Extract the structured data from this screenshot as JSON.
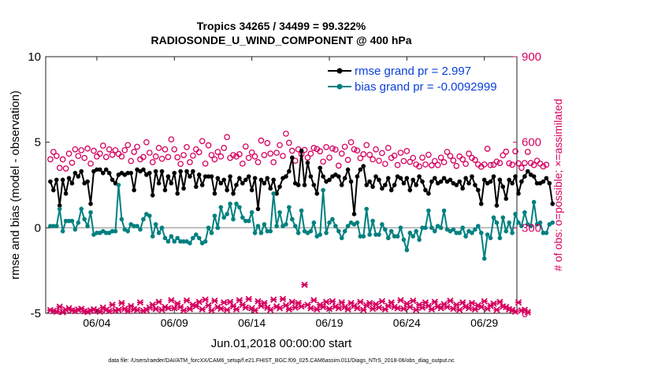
{
  "chart_data": {
    "type": "line",
    "title_line1": "Tropics 34265 / 34499 = 99.322%",
    "title_line2": "RADIOSONDE_U_WIND_COMPONENT @ 400 hPa",
    "xlabel": "Jun.01,2018 00:00:00 start",
    "ylabel_left": "rmse and bias (model - observation)",
    "ylabel_right": "# of obs: o=possible; ×=assimilated",
    "ylim_left": [
      -5,
      10
    ],
    "ylim_right": [
      0,
      900
    ],
    "xlim": [
      0.7,
      31.1
    ],
    "x_tick_values": [
      4,
      9,
      14,
      19,
      24,
      29
    ],
    "x_tick_labels": [
      "06/04",
      "06/09",
      "06/14",
      "06/19",
      "06/24",
      "06/29"
    ],
    "y_left_ticks": [
      "10",
      "5",
      "0",
      "-5"
    ],
    "y_right_ticks": [
      "900",
      "600",
      "300",
      "0"
    ],
    "footer": "data file: /Users/raeder/DAI/ATM_forcXX/CAM6_setup/f.e21.FHIST_BGC.f09_025.CAM6assim.011/Diags_NTrS_2018-06/obs_diag_output.nc",
    "legend": [
      {
        "name": "rmse grand pr = 2.997",
        "color": "#000000"
      },
      {
        "name": "bias grand pr = -0.0092999",
        "color": "#008080"
      }
    ],
    "colors": {
      "rmse": "#000000",
      "bias": "#008080",
      "obs": "#d6005f",
      "label_blue": "#0a3fd9",
      "zero_line": "#b0b0b0"
    },
    "series": [
      {
        "name": "rmse",
        "values": [
          2.7,
          2.2,
          2.8,
          1.3,
          2.8,
          2.0,
          2.9,
          2.6,
          3.2,
          3.0,
          3.3,
          2.6,
          2.7,
          1.4,
          3.3,
          3.4,
          3.4,
          3.2,
          3.4,
          3.2,
          2.8,
          2.6,
          3.1,
          3.2,
          3.1,
          3.2,
          3.2,
          2.2,
          3.4,
          3.3,
          3.4,
          3.1,
          3.2,
          1.9,
          3.3,
          2.6,
          3.3,
          2.2,
          3.0,
          2.6,
          3.2,
          2.0,
          3.3,
          2.3,
          3.3,
          3.0,
          3.3,
          2.4,
          3.1,
          2.5,
          3.0,
          3.0,
          3.0,
          2.0,
          2.9,
          2.6,
          2.8,
          2.2,
          3.0,
          2.0,
          2.5,
          2.9,
          2.6,
          2.8,
          3.0,
          2.2,
          2.9,
          1.1,
          2.8,
          2.6,
          2.9,
          2.3,
          2.8,
          2.0,
          2.4,
          2.9,
          3.0,
          3.3,
          4.1,
          2.6,
          2.5,
          4.5,
          2.5,
          3.8,
          3.0,
          2.5,
          2.0,
          3.5,
          3.0,
          2.7,
          2.8,
          3.0,
          3.1,
          3.0,
          2.5,
          2.9,
          3.4,
          2.7,
          0.8,
          3.0,
          3.4,
          3.6,
          2.5,
          2.7,
          2.4,
          3.0,
          2.8,
          2.3,
          2.5,
          2.9,
          2.2,
          2.5,
          3.0,
          2.9,
          2.6,
          2.9,
          2.2,
          2.8,
          2.5,
          3.0,
          2.7,
          2.2,
          2.0,
          2.7,
          2.9,
          2.6,
          2.7,
          2.9,
          2.7,
          2.8,
          2.6,
          2.5,
          2.7,
          2.3,
          2.9,
          2.6,
          3.0,
          2.5,
          2.2,
          1.4,
          2.8,
          2.6,
          2.7,
          3.0,
          1.3,
          2.8,
          2.4,
          1.7,
          2.8,
          2.6,
          3.0,
          2.0,
          2.7,
          3.0,
          3.3,
          3.1,
          3.0,
          2.6,
          2.6,
          2.7,
          2.9,
          2.6,
          1.4
        ]
      },
      {
        "name": "bias",
        "values": [
          0.1,
          0.1,
          0.1,
          1.1,
          -0.2,
          0.4,
          0.4,
          0.4,
          -0.1,
          0.3,
          1.1,
          0.5,
          0.1,
          0.9,
          -0.4,
          -0.3,
          -0.3,
          -0.2,
          -0.3,
          -0.3,
          -0.2,
          -0.2,
          2.5,
          0.5,
          -0.1,
          -0.2,
          0.2,
          0.1,
          0.1,
          -0.1,
          0.5,
          0.8,
          0.7,
          -0.5,
          0.2,
          -0.3,
          0.0,
          -0.6,
          -0.8,
          -0.5,
          -0.8,
          -0.6,
          -0.8,
          -0.8,
          -0.8,
          -0.9,
          -0.6,
          -0.4,
          -0.6,
          -0.9,
          -0.8,
          0.0,
          -0.3,
          0.7,
          0.0,
          1.2,
          0.6,
          0.8,
          1.4,
          0.5,
          1.4,
          1.2,
          0.6,
          0.4,
          0.4,
          0.9,
          -0.3,
          0.1,
          -0.3,
          0.2,
          -0.2,
          -0.2,
          2.0,
          0.1,
          0.9,
          0.1,
          0.2,
          1.2,
          0.5,
          0.1,
          -0.3,
          1.0,
          -0.2,
          -0.3,
          -0.2,
          0.3,
          -0.5,
          -0.4,
          2.2,
          -0.3,
          0.3,
          0.5,
          0.1,
          -0.2,
          -0.6,
          -0.2,
          0.1,
          0.3,
          0.2,
          0.3,
          -0.5,
          -0.5,
          1.1,
          -0.4,
          0.4,
          -0.4,
          -0.4,
          0.2,
          -0.1,
          -0.6,
          -0.2,
          -0.5,
          -0.5,
          0.0,
          -0.7,
          -1.3,
          -0.3,
          -0.5,
          -0.2,
          -0.7,
          0.0,
          0.0,
          1.0,
          0.0,
          -0.2,
          0.1,
          0.0,
          1.0,
          -0.1,
          -0.2,
          -0.1,
          -0.3,
          -0.3,
          0.0,
          -0.5,
          -0.2,
          -0.3,
          -0.1,
          0.1,
          -0.3,
          -1.8,
          -0.4,
          -0.6,
          0.6,
          0.3,
          -0.6,
          0.6,
          -0.2,
          0.3,
          -0.3,
          0.8,
          0.3,
          0.1,
          0.9,
          0.2,
          0.1,
          1.5,
          0.2,
          0.3,
          -0.3,
          -0.3,
          0.2,
          0.3
        ]
      },
      {
        "name": "obs_possible",
        "values": [
          540,
          566,
          552,
          510,
          540,
          508,
          560,
          528,
          575,
          552,
          572,
          545,
          578,
          525,
          570,
          550,
          560,
          588,
          548,
          575,
          556,
          572,
          559,
          550,
          572,
          590,
          534,
          566,
          584,
          540,
          548,
          600,
          563,
          530,
          550,
          580,
          542,
          575,
          548,
          610,
          575,
          547,
          524,
          555,
          583,
          530,
          553,
          575,
          565,
          604,
          525,
          589,
          555,
          540,
          566,
          550,
          580,
          618,
          545,
          555,
          550,
          558,
          525,
          585,
          545,
          564,
          550,
          530,
          606,
          555,
          597,
          560,
          530,
          563,
          590,
          552,
          630,
          598,
          570,
          535,
          575,
          558,
          573,
          546,
          560,
          580,
          576,
          568,
          532,
          583,
          546,
          578,
          574,
          518,
          560,
          584,
          538,
          600,
          575,
          571,
          544,
          558,
          590,
          556,
          540,
          575,
          535,
          562,
          524,
          580,
          545,
          553,
          520,
          563,
          534,
          569,
          531,
          545,
          522,
          515,
          546,
          522,
          556,
          519,
          534,
          520,
          546,
          530,
          566,
          552,
          536,
          517,
          550,
          540,
          524,
          560,
          545,
          538,
          522,
          514,
          522,
          577,
          520,
          521,
          532,
          527,
          554,
          567,
          526,
          521,
          568,
          526,
          510,
          527,
          566,
          527,
          520,
          535,
          525,
          515,
          521
        ]
      },
      {
        "name": "obs_assimilated",
        "values": [
          11,
          8,
          6,
          23,
          4,
          12,
          18,
          10,
          8,
          13,
          16,
          7,
          5,
          10,
          14,
          9,
          6,
          20,
          12,
          8,
          30,
          10,
          12,
          36,
          16,
          8,
          25,
          14,
          12,
          38,
          9,
          12,
          20,
          30,
          15,
          40,
          12,
          22,
          18,
          46,
          18,
          34,
          22,
          10,
          45,
          15,
          30,
          25,
          40,
          14,
          48,
          28,
          10,
          44,
          22,
          16,
          38,
          12,
          40,
          25,
          14,
          46,
          30,
          20,
          50,
          18,
          10,
          42,
          26,
          36,
          20,
          12,
          48,
          24,
          18,
          50,
          28,
          14,
          40,
          20,
          36,
          24,
          100,
          30,
          18,
          46,
          14,
          30,
          22,
          40,
          16,
          42,
          24,
          18,
          38,
          22,
          14,
          36,
          26,
          18,
          40,
          12,
          28,
          36,
          16,
          32,
          20,
          42,
          14,
          26,
          38,
          22,
          18,
          46,
          16,
          34,
          22,
          44,
          12,
          30,
          20,
          38,
          26,
          14,
          40,
          24,
          18,
          32,
          22,
          44,
          16,
          30,
          12,
          38,
          24,
          18,
          36,
          14,
          28,
          22,
          42,
          16,
          26,
          34,
          12,
          40,
          24,
          22,
          14,
          12,
          6,
          38,
          10,
          12,
          4
        ]
      }
    ]
  }
}
